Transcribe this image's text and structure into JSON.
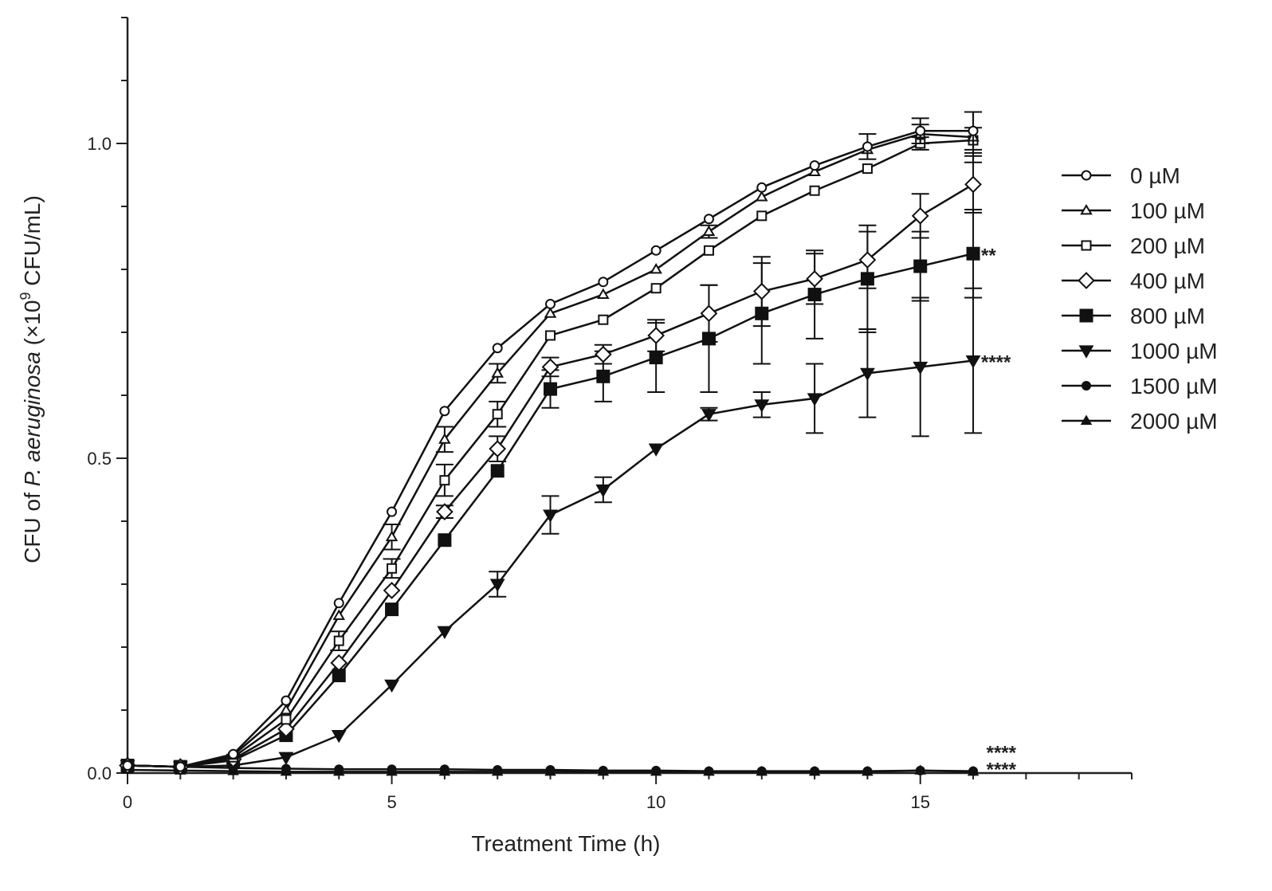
{
  "chart_data": {
    "type": "line",
    "xlabel": "Treatment Time (h)",
    "ylabel": {
      "pre": "CFU of ",
      "italic": "P. aeruginosa",
      "mid": " (×10",
      "sup": "9",
      "post": " CFU/mL)"
    },
    "xlim": [
      0,
      19
    ],
    "ylim": [
      0,
      1.2
    ],
    "xticks": [
      0,
      5,
      10,
      15
    ],
    "xtick_labels": [
      "0",
      "5",
      "10",
      "15"
    ],
    "yticks": [
      0,
      0.5,
      1.0
    ],
    "ytick_labels": [
      "0.0",
      "0.5",
      "1.0"
    ],
    "grid": false,
    "legend_position": "right",
    "series": [
      {
        "name": "0 µM",
        "marker": "circle-open",
        "x": [
          0,
          1,
          2,
          3,
          4,
          5,
          6,
          7,
          8,
          9,
          10,
          11,
          12,
          13,
          14,
          15,
          16
        ],
        "y": [
          0.012,
          0.01,
          0.03,
          0.115,
          0.27,
          0.415,
          0.575,
          0.675,
          0.745,
          0.78,
          0.83,
          0.88,
          0.93,
          0.965,
          0.995,
          1.02,
          1.02
        ],
        "err": [
          0,
          0,
          0,
          0,
          0,
          0,
          0,
          0,
          0,
          0,
          0,
          0,
          0,
          0,
          0.02,
          0.02,
          0.03
        ]
      },
      {
        "name": "100 µM",
        "marker": "triangle-up-open",
        "x": [
          0,
          1,
          2,
          3,
          4,
          5,
          6,
          7,
          8,
          9,
          10,
          11,
          12,
          13,
          14,
          15,
          16
        ],
        "y": [
          0.012,
          0.01,
          0.028,
          0.1,
          0.25,
          0.375,
          0.53,
          0.635,
          0.73,
          0.76,
          0.8,
          0.86,
          0.915,
          0.955,
          0.99,
          1.015,
          1.01
        ],
        "err": [
          0,
          0,
          0,
          0,
          0,
          0.02,
          0.02,
          0.015,
          0,
          0,
          0,
          0.01,
          0,
          0,
          0,
          0.015,
          0.04
        ]
      },
      {
        "name": "200 µM",
        "marker": "square-open",
        "x": [
          0,
          1,
          2,
          3,
          4,
          5,
          6,
          7,
          8,
          9,
          10,
          11,
          12,
          13,
          14,
          15,
          16
        ],
        "y": [
          0.012,
          0.01,
          0.025,
          0.085,
          0.21,
          0.325,
          0.465,
          0.57,
          0.695,
          0.72,
          0.77,
          0.83,
          0.885,
          0.925,
          0.96,
          1.0,
          1.005
        ],
        "err": [
          0,
          0,
          0,
          0,
          0.015,
          0.015,
          0.025,
          0.02,
          0,
          0,
          0,
          0,
          0,
          0,
          0,
          0.01,
          0.02
        ]
      },
      {
        "name": "400 µM",
        "marker": "diamond-open",
        "x": [
          0,
          1,
          2,
          3,
          4,
          5,
          6,
          7,
          8,
          9,
          10,
          11,
          12,
          13,
          14,
          15,
          16
        ],
        "y": [
          0.012,
          0.01,
          0.022,
          0.07,
          0.175,
          0.29,
          0.415,
          0.515,
          0.645,
          0.665,
          0.695,
          0.73,
          0.765,
          0.785,
          0.815,
          0.885,
          0.935
        ],
        "err": [
          0,
          0,
          0,
          0,
          0,
          0,
          0.01,
          0.02,
          0.015,
          0.015,
          0.025,
          0.045,
          0.055,
          0.04,
          0.045,
          0.035,
          0.045
        ]
      },
      {
        "name": "800 µM",
        "marker": "square-filled",
        "x": [
          0,
          1,
          2,
          3,
          4,
          5,
          6,
          7,
          8,
          9,
          10,
          11,
          12,
          13,
          14,
          15,
          16
        ],
        "y": [
          0.012,
          0.01,
          0.02,
          0.06,
          0.155,
          0.26,
          0.37,
          0.48,
          0.61,
          0.63,
          0.66,
          0.69,
          0.73,
          0.76,
          0.785,
          0.805,
          0.825
        ],
        "err": [
          0,
          0,
          0,
          0,
          0,
          0,
          0,
          0,
          0.03,
          0.04,
          0.055,
          0.085,
          0.08,
          0.07,
          0.085,
          0.055,
          0.07
        ]
      },
      {
        "name": "1000 µM",
        "marker": "triangle-down-filled",
        "x": [
          0,
          1,
          2,
          3,
          4,
          5,
          6,
          7,
          8,
          9,
          10,
          11,
          12,
          13,
          14,
          15,
          16
        ],
        "y": [
          0.012,
          0.01,
          0.012,
          0.025,
          0.06,
          0.14,
          0.225,
          0.3,
          0.41,
          0.45,
          0.515,
          0.57,
          0.585,
          0.595,
          0.635,
          0.645,
          0.655
        ],
        "err": [
          0,
          0,
          0,
          0,
          0,
          0,
          0,
          0.02,
          0.03,
          0.02,
          0,
          0.01,
          0.02,
          0.055,
          0.07,
          0.11,
          0.115
        ]
      },
      {
        "name": "1500 µM",
        "marker": "circle-filled",
        "x": [
          0,
          1,
          2,
          3,
          4,
          5,
          6,
          7,
          8,
          9,
          10,
          11,
          12,
          13,
          14,
          15,
          16
        ],
        "y": [
          0.012,
          0.01,
          0.008,
          0.007,
          0.006,
          0.006,
          0.006,
          0.005,
          0.005,
          0.004,
          0.004,
          0.003,
          0.003,
          0.003,
          0.003,
          0.004,
          0.003
        ],
        "err": [
          0,
          0,
          0,
          0,
          0,
          0,
          0,
          0,
          0,
          0,
          0,
          0,
          0,
          0,
          0,
          0,
          0
        ]
      },
      {
        "name": "2000 µM",
        "marker": "triangle-up-filled",
        "x": [
          0,
          1,
          2,
          3,
          4,
          5,
          6,
          7,
          8,
          9,
          10,
          11,
          12,
          13,
          14,
          15,
          16
        ],
        "y": [
          0.005,
          0.004,
          0.003,
          0.002,
          0.002,
          0.002,
          0.002,
          0.002,
          0.002,
          0.002,
          0.002,
          0.002,
          0.002,
          0.002,
          0.002,
          0.004,
          0.002
        ],
        "err": [
          0,
          0,
          0,
          0,
          0,
          0,
          0,
          0,
          0,
          0,
          0,
          0,
          0,
          0,
          0,
          0,
          0
        ]
      }
    ],
    "annotations": [
      {
        "text": "**",
        "x": 16.15,
        "y": 0.825
      },
      {
        "text": "****",
        "x": 16.15,
        "y": 0.655
      },
      {
        "text": "****",
        "x": 16.25,
        "y": 0.035
      },
      {
        "text": "****",
        "x": 16.25,
        "y": 0.008
      }
    ]
  }
}
